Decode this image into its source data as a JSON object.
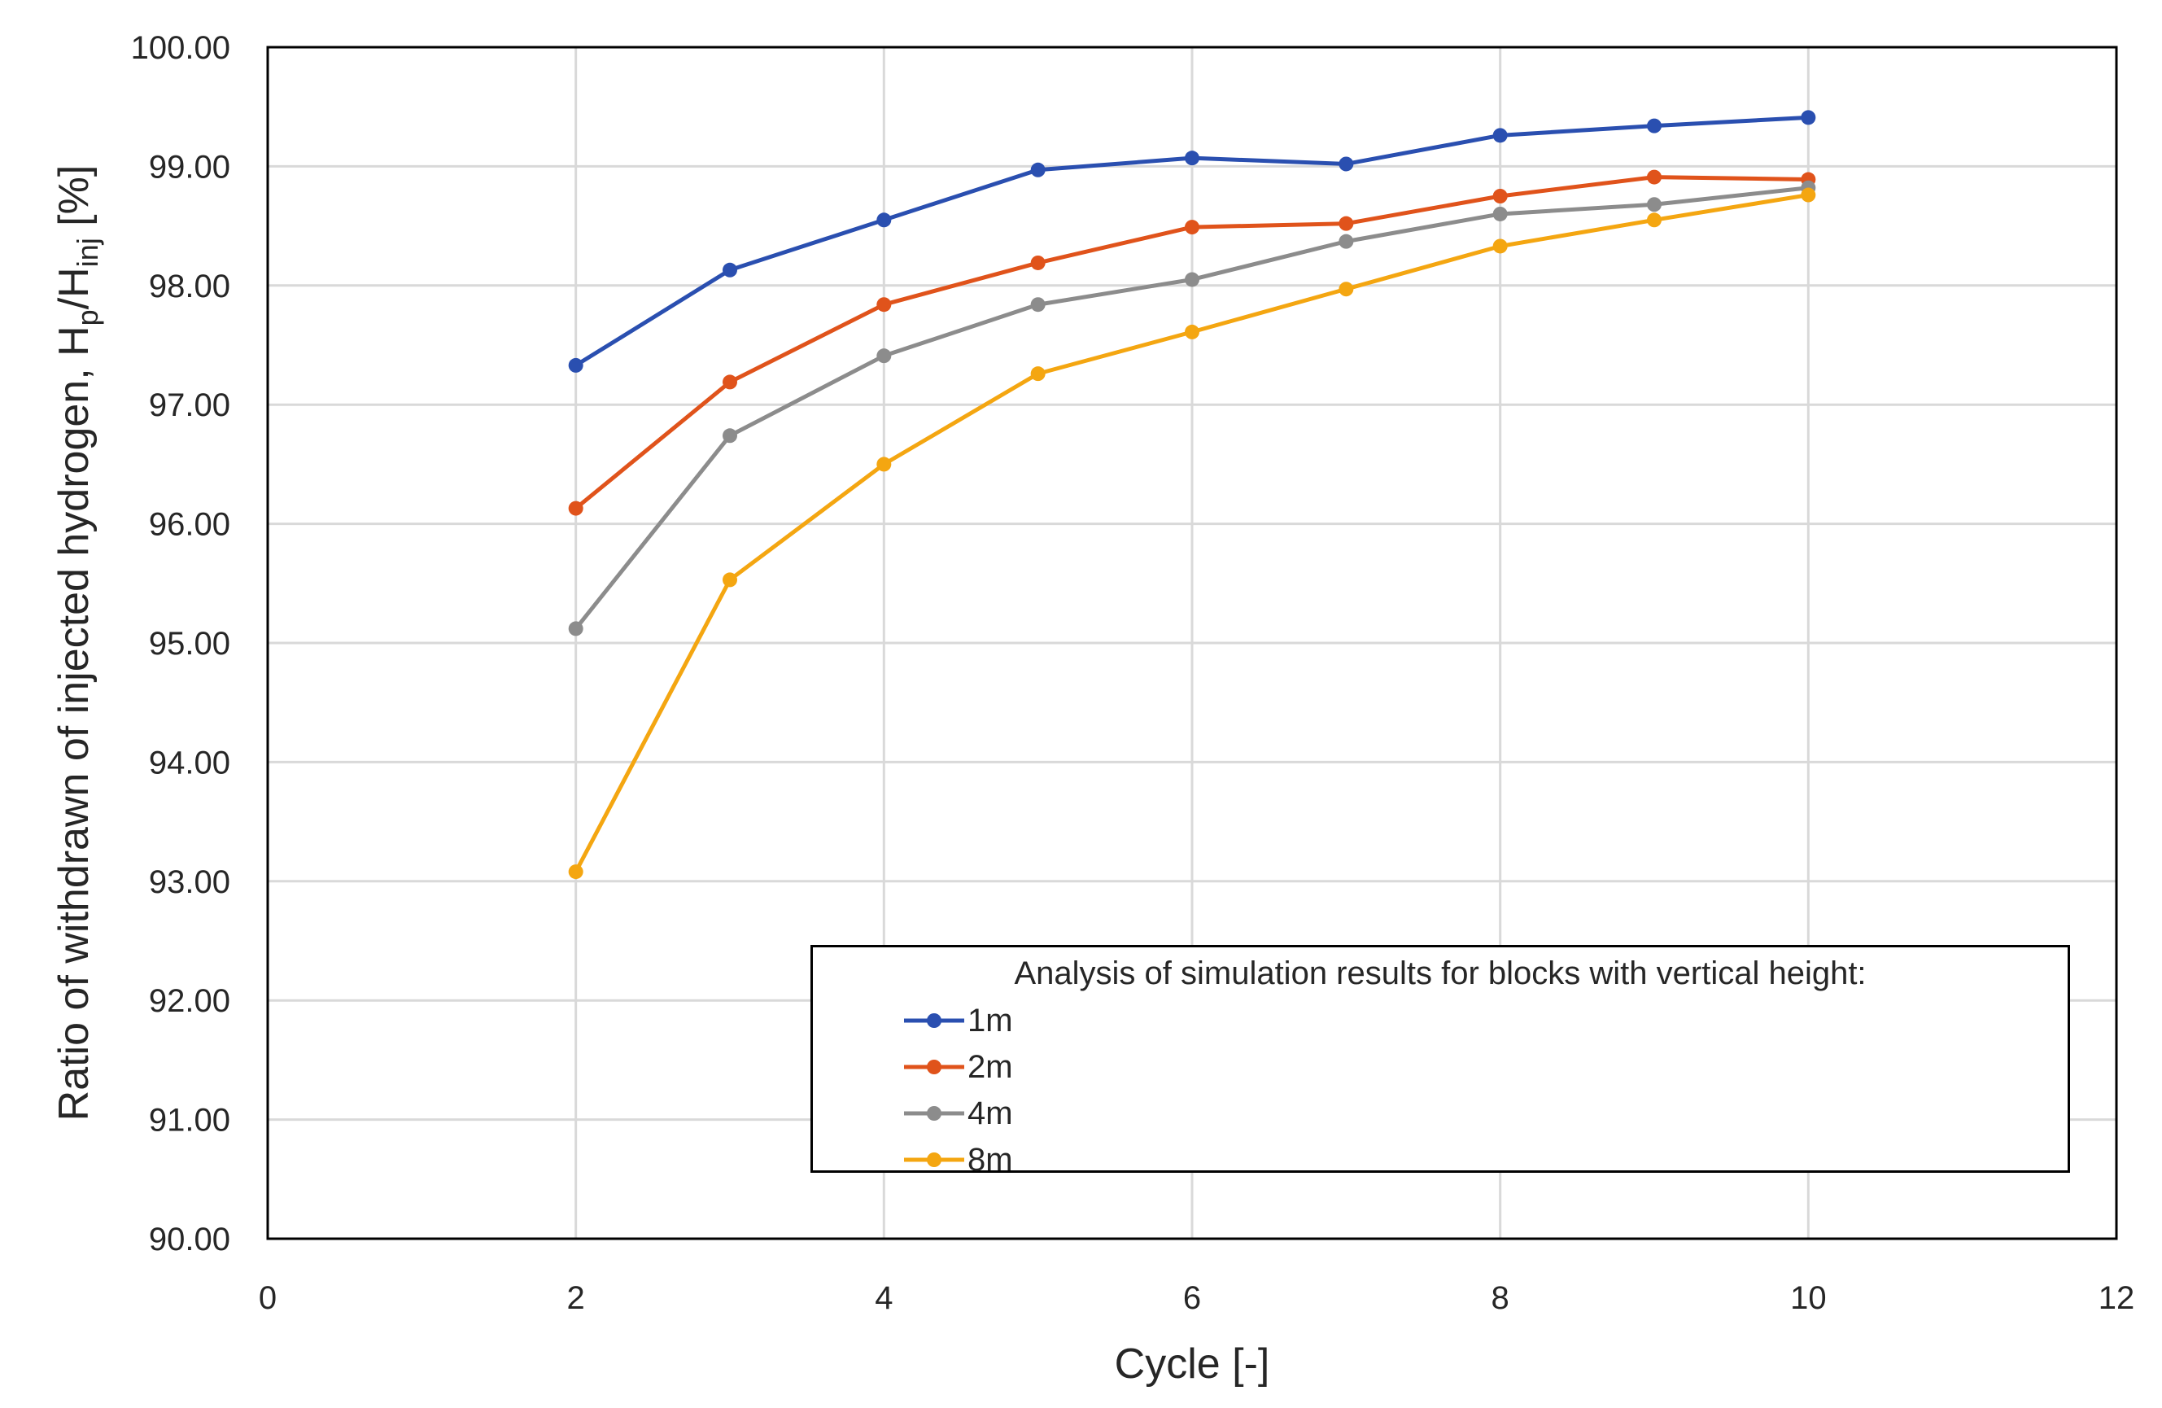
{
  "chart_data": {
    "type": "line",
    "title": "",
    "xlabel": "Cycle [-]",
    "ylabel": {
      "text": "Ratio of withdrawn of injected hydrogen, H",
      "sub1": "p",
      "mid": "/H",
      "sub2": "inj",
      "tail": " [%]"
    },
    "xlim": [
      0,
      12
    ],
    "ylim": [
      90,
      100
    ],
    "xticks": [
      0,
      2,
      4,
      6,
      8,
      10,
      12
    ],
    "yticks": [
      90,
      91,
      92,
      93,
      94,
      95,
      96,
      97,
      98,
      99,
      100
    ],
    "ytick_decimals": 2,
    "grid": true,
    "x": [
      2,
      3,
      4,
      5,
      6,
      7,
      8,
      9,
      10
    ],
    "legend_title": "Analysis of simulation results for blocks with vertical height:",
    "series": [
      {
        "name": "1m",
        "color": "#2a4fb0",
        "values": [
          97.33,
          98.13,
          98.55,
          98.97,
          99.07,
          99.02,
          99.26,
          99.34,
          99.41
        ]
      },
      {
        "name": "2m",
        "color": "#e0531b",
        "values": [
          96.13,
          97.19,
          97.84,
          98.19,
          98.49,
          98.52,
          98.75,
          98.91,
          98.89
        ]
      },
      {
        "name": "4m",
        "color": "#8c8c8c",
        "values": [
          95.12,
          96.74,
          97.41,
          97.84,
          98.05,
          98.37,
          98.6,
          98.68,
          98.82
        ]
      },
      {
        "name": "8m",
        "color": "#f4a611",
        "values": [
          93.08,
          95.53,
          96.5,
          97.26,
          97.61,
          97.97,
          98.33,
          98.55,
          98.76
        ]
      }
    ]
  }
}
